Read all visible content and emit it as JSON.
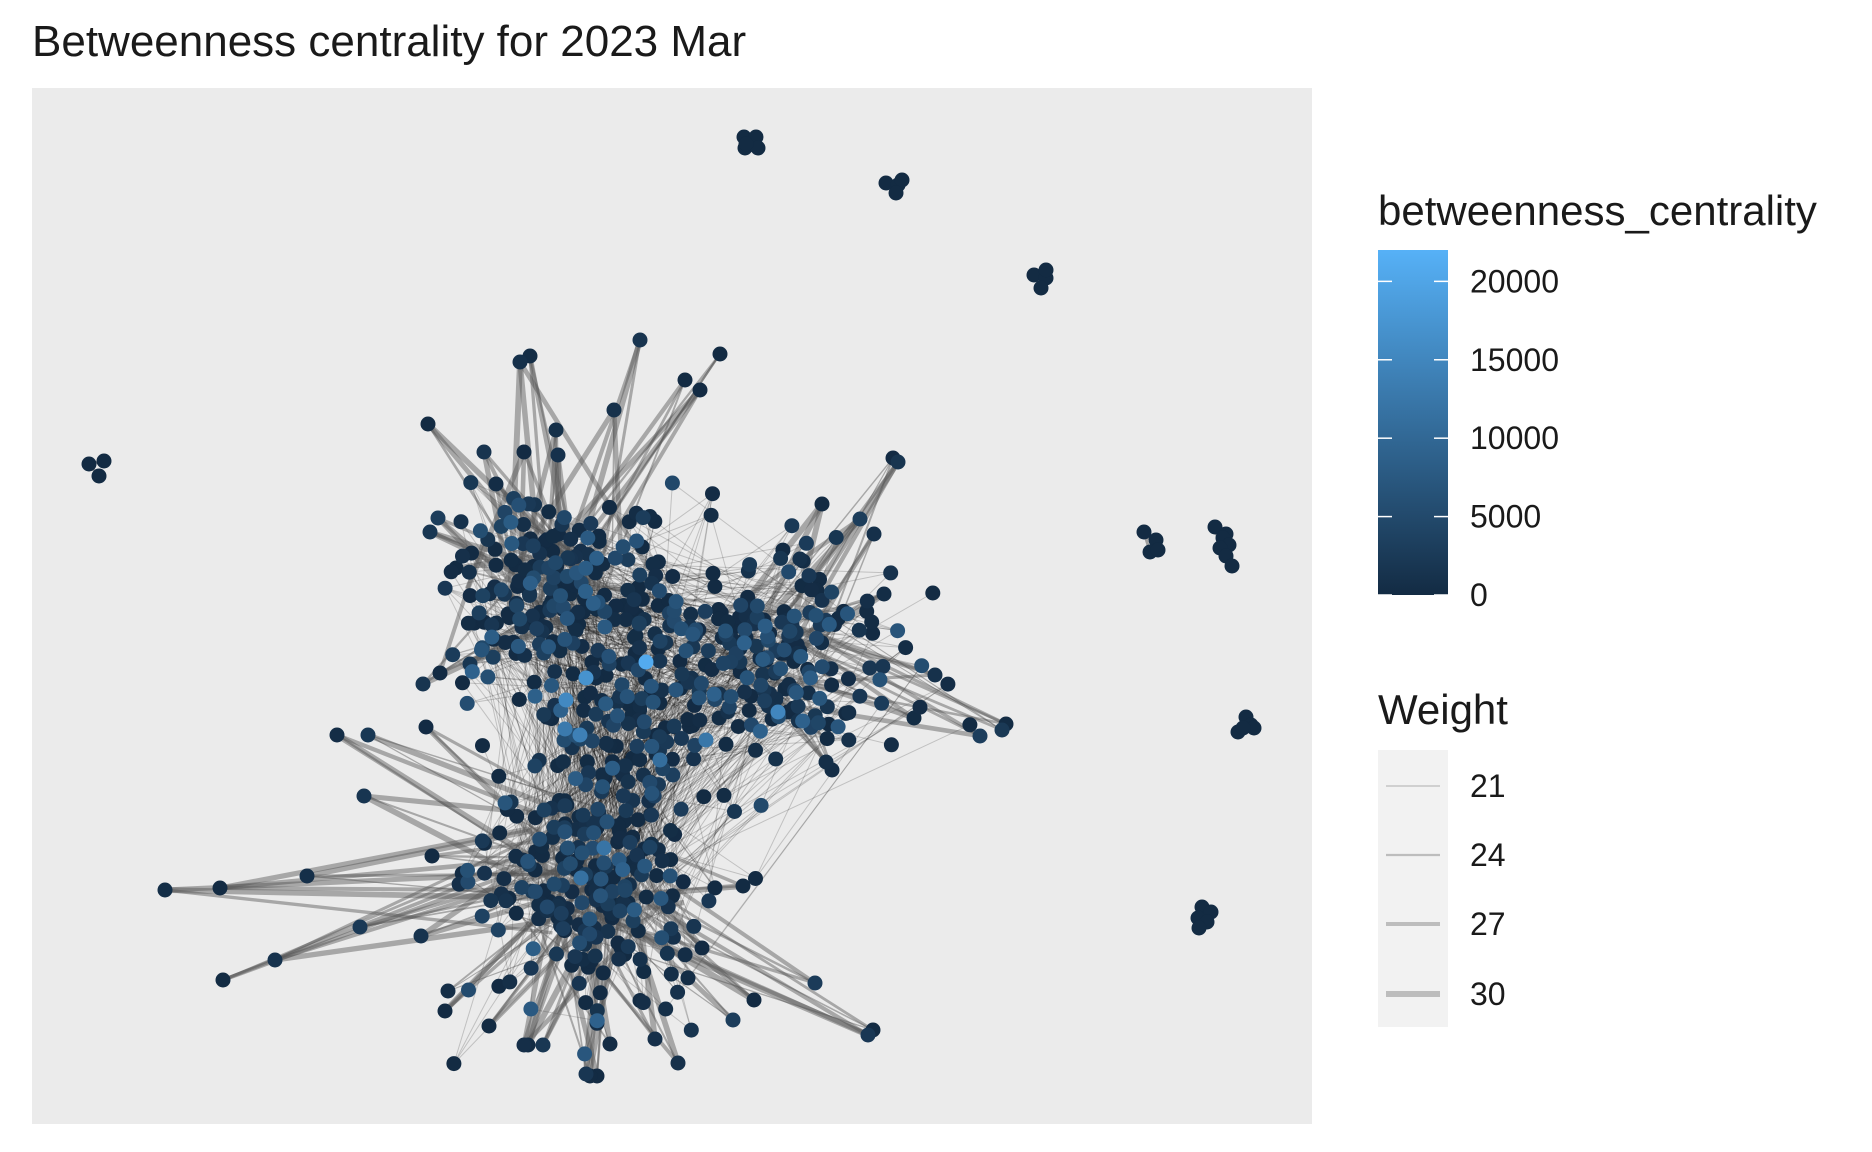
{
  "chart_data": {
    "type": "network",
    "title": "Betweenness centrality for 2023 Mar",
    "color_legend": {
      "title": "betweenness_centrality",
      "ticks": [
        0,
        5000,
        10000,
        15000,
        20000
      ],
      "tick_labels": [
        "0",
        "5000",
        "10000",
        "15000",
        "20000"
      ],
      "range": [
        0,
        22000
      ],
      "low_color": "#132B43",
      "high_color": "#56B1F7"
    },
    "size_legend": {
      "title": "Weight",
      "entries": [
        {
          "label": "21",
          "value": 21
        },
        {
          "label": "24",
          "value": 24
        },
        {
          "label": "27",
          "value": 27
        },
        {
          "label": "30",
          "value": 30
        }
      ]
    },
    "panel_background": "#EBEBEB",
    "edge_color": "#000000",
    "legend_key_background": "#F2F2F2",
    "legend_key_line": "#BDBDBD"
  }
}
